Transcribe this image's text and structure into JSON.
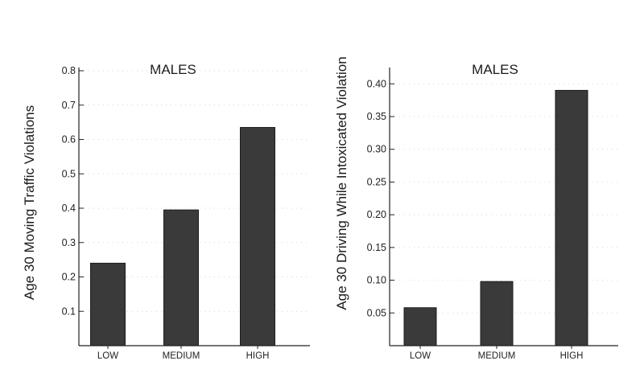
{
  "chart_data": [
    {
      "type": "bar",
      "title": "MALES",
      "xlabel": "",
      "ylabel": "Age 30 Moving Traffic Violations",
      "categories": [
        "LOW",
        "MEDIUM",
        "HIGH"
      ],
      "values": [
        0.24,
        0.395,
        0.635
      ],
      "ylim": [
        0,
        0.8
      ],
      "yticks": [
        "0.1",
        "0.2",
        "0.3",
        "0.4",
        "0.5",
        "0.6",
        "0.7",
        "0.8"
      ],
      "ytick_values": [
        0.1,
        0.2,
        0.3,
        0.4,
        0.5,
        0.6,
        0.7,
        0.8
      ],
      "bar_color": "#3a3a3a",
      "grid": false,
      "legend": "none"
    },
    {
      "type": "bar",
      "title": "MALES",
      "xlabel": "",
      "ylabel": "Age 30 Driving While Intoxicated Violation",
      "categories": [
        "LOW",
        "MEDIUM",
        "HIGH"
      ],
      "values": [
        0.058,
        0.098,
        0.39
      ],
      "ylim": [
        0,
        0.42
      ],
      "yticks": [
        "0.05",
        "0.10",
        "0.15",
        "0.20",
        "0.25",
        "0.30",
        "0.35",
        "0.40"
      ],
      "ytick_values": [
        0.05,
        0.1,
        0.15,
        0.2,
        0.25,
        0.3,
        0.35,
        0.4
      ],
      "bar_color": "#3a3a3a",
      "grid": false,
      "legend": "none"
    }
  ]
}
